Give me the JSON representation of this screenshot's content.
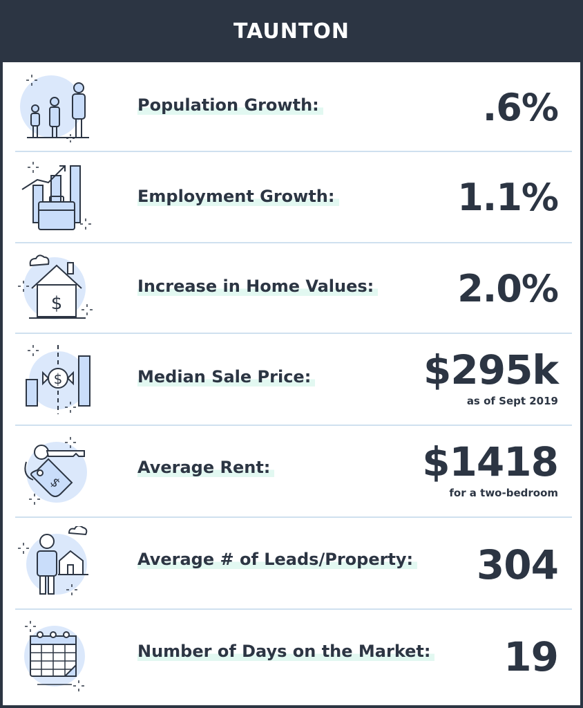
{
  "title": "TAUNTON",
  "rows": [
    {
      "label": "Population Growth:",
      "value": ".6%",
      "icon": "family-icon"
    },
    {
      "label": "Employment Growth:",
      "value": "1.1%",
      "icon": "briefcase-chart-icon"
    },
    {
      "label": "Increase in Home Values:",
      "value": "2.0%",
      "icon": "house-dollar-icon"
    },
    {
      "label": "Median Sale Price:",
      "value": "$295k",
      "note": "as  of Sept 2019",
      "icon": "price-bars-icon"
    },
    {
      "label": "Average Rent:",
      "value": "$1418",
      "note": "for a two-bedroom",
      "icon": "key-tag-icon"
    },
    {
      "label": "Average # of Leads/Property:",
      "value": "304",
      "icon": "person-house-icon"
    },
    {
      "label": "Number of Days on the Market:",
      "value": "19",
      "icon": "calendar-icon"
    }
  ],
  "colors": {
    "header": "#2c3543",
    "text": "#2c3543",
    "accent": "#e2f8f1",
    "icon_fill": "#c9ddfa",
    "divider": "#cfe0ef"
  }
}
